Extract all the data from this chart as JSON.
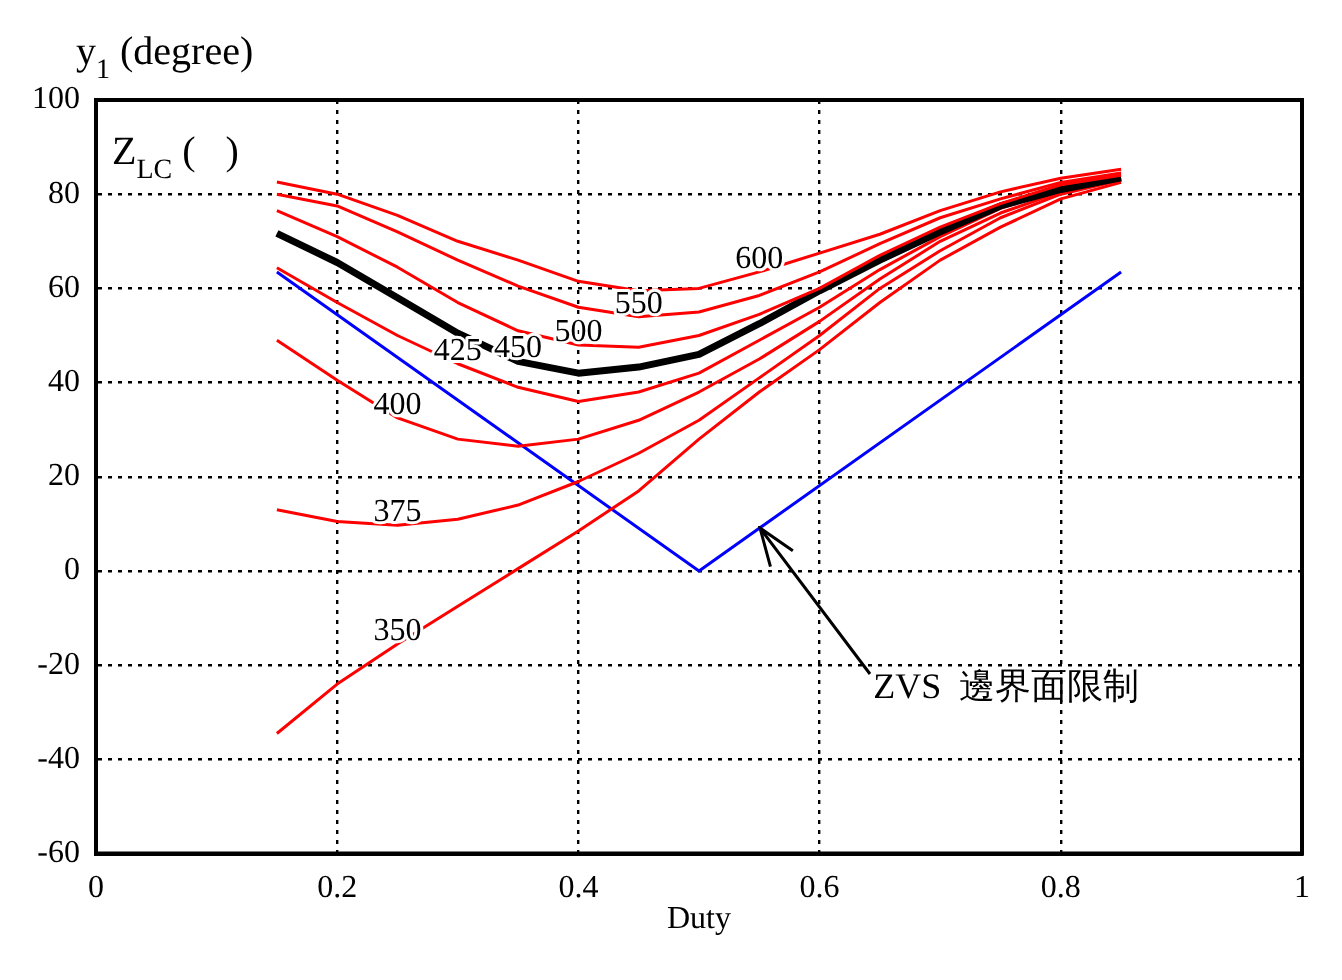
{
  "chart_data": {
    "type": "line",
    "xlabel": "Duty",
    "ylabel": "y$_{1}$ (degree)",
    "x": [
      0.15,
      0.2,
      0.25,
      0.3,
      0.35,
      0.4,
      0.45,
      0.5,
      0.55,
      0.6,
      0.65,
      0.7,
      0.75,
      0.8,
      0.85
    ],
    "xlim": [
      0,
      1
    ],
    "xticks": [
      0,
      0.2,
      0.4,
      0.6,
      0.8,
      1
    ],
    "ylim": [
      -60,
      100
    ],
    "yticks": [
      -60,
      -40,
      -20,
      0,
      20,
      40,
      60,
      80,
      100
    ],
    "grid": true,
    "line_style": "solid",
    "marker": "none",
    "series": [
      {
        "color": "#ff0000",
        "values": [
          82.6,
          80,
          75.5,
          70,
          66,
          61.5,
          59.5,
          60,
          63.5,
          67.5,
          71.5,
          76.5,
          80.5,
          83.4,
          85.3
        ]
      },
      {
        "color": "#ff0000",
        "values": [
          80,
          77.5,
          72,
          66,
          60.5,
          56,
          54,
          55,
          58.5,
          63.5,
          69.5,
          75,
          79,
          82.5,
          84.5
        ]
      },
      {
        "color": "#ff0000",
        "values": [
          76.5,
          71,
          64.5,
          57,
          51,
          48,
          47.5,
          50,
          54.5,
          60,
          67,
          73,
          78,
          82,
          84
        ]
      },
      {
        "color": "#000000",
        "values": [
          71.7,
          65.5,
          58,
          50.5,
          44.5,
          42,
          43.3,
          46,
          52.5,
          59.5,
          66,
          72,
          77.5,
          81,
          83.5
        ]
      },
      {
        "color": "#ff0000",
        "values": [
          64.4,
          57,
          50,
          44,
          39,
          36,
          38,
          42,
          49,
          56,
          64,
          71,
          77,
          81,
          83.5
        ]
      },
      {
        "color": "#ff0000",
        "values": [
          49,
          40.5,
          32.5,
          28,
          26.5,
          28,
          32,
          38,
          45,
          53,
          62,
          70,
          76,
          80.5,
          83
        ]
      },
      {
        "color": "#ff0000",
        "values": [
          13,
          10.5,
          9.7,
          11,
          14,
          19,
          25,
          32,
          41,
          50,
          60,
          68,
          75,
          80,
          83
        ]
      },
      {
        "color": "#ff0000",
        "values": [
          -34.5,
          -24,
          -15.5,
          -7.5,
          0.5,
          8.5,
          17,
          28,
          38,
          47,
          57,
          66,
          73,
          79,
          82.5
        ]
      },
      {
        "color": "#0000ff",
        "x": [
          0.15,
          0.5,
          0.85
        ],
        "values": [
          63.5,
          0,
          63.5
        ]
      }
    ],
    "annotations": [
      "Z$_{LC}$ (   )",
      {
        "text": "600",
        "x": 0.55,
        "y": 63.5
      },
      {
        "text": "550",
        "x": 0.45,
        "y": 54
      },
      {
        "text": "500",
        "x": 0.4,
        "y": 48
      },
      {
        "text": "450",
        "x": 0.35,
        "y": 44.5
      },
      {
        "text": "425",
        "x": 0.3,
        "y": 44
      },
      {
        "text": "400",
        "x": 0.25,
        "y": 32.5
      },
      {
        "text": "375",
        "x": 0.25,
        "y": 9.7
      },
      {
        "text": "350",
        "x": 0.25,
        "y": -15.5
      },
      {
        "text": "ZVS  邊界面限制",
        "x": 0.55,
        "y": 9
      }
    ]
  }
}
